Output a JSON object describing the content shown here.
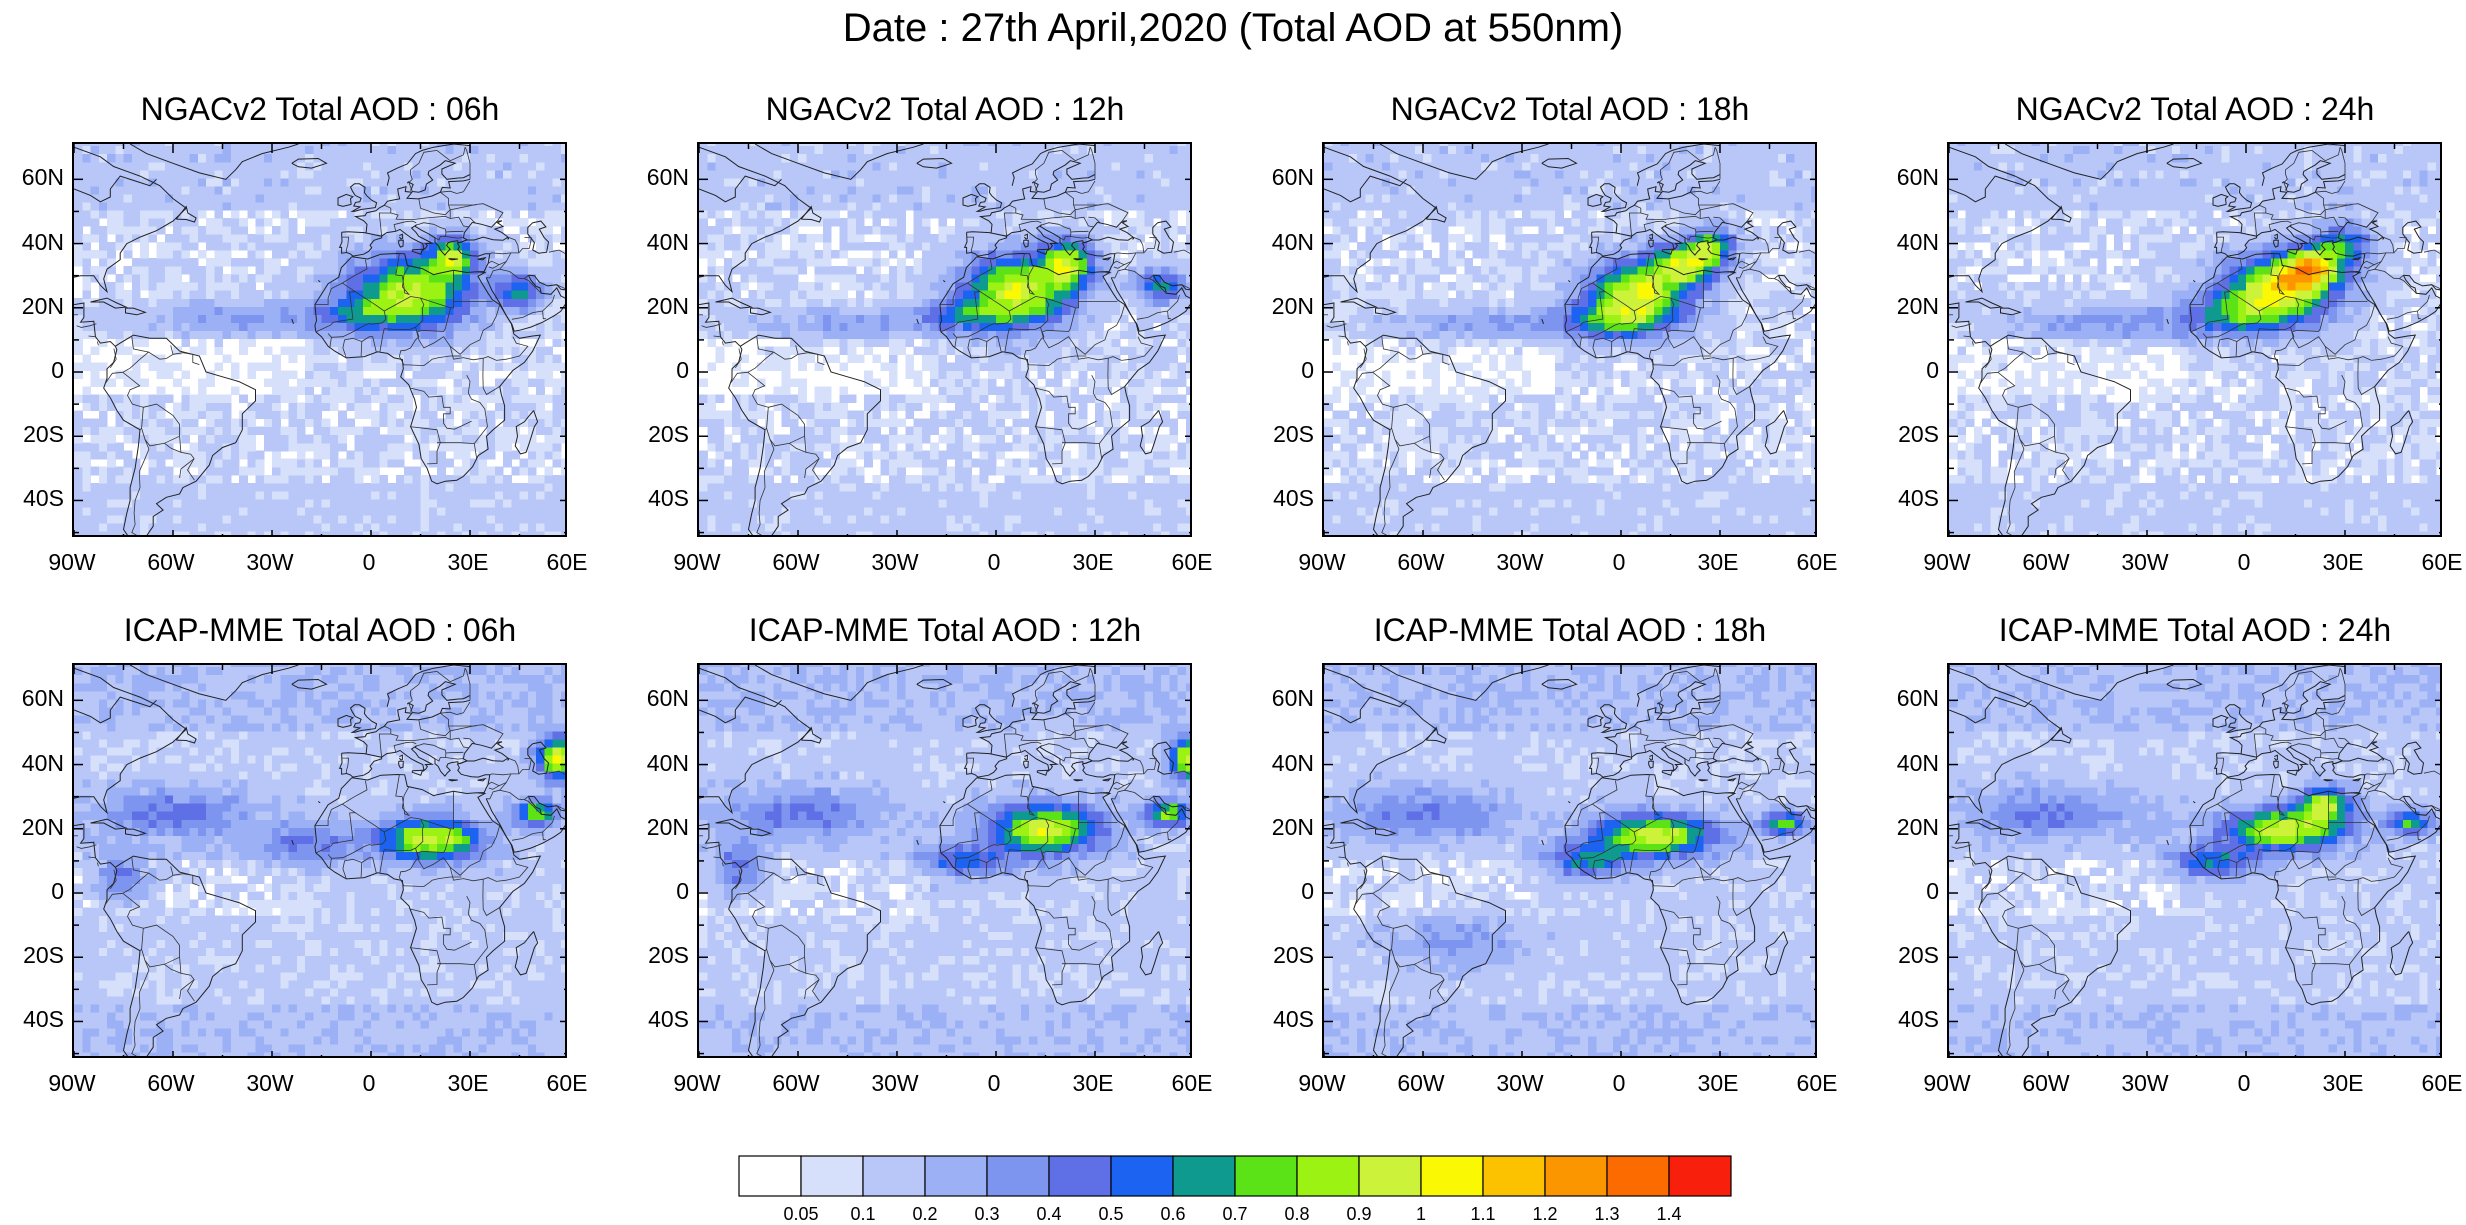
{
  "title": "Date : 27th April,2020 (Total AOD at 550nm)",
  "rows": [
    {
      "panels": [
        {
          "title": "NGACv2 Total AOD : 06h"
        },
        {
          "title": "NGACv2 Total AOD : 12h"
        },
        {
          "title": "NGACv2 Total AOD : 18h"
        },
        {
          "title": "NGACv2 Total AOD : 24h"
        }
      ]
    },
    {
      "panels": [
        {
          "title": "ICAP-MME Total AOD : 06h"
        },
        {
          "title": "ICAP-MME Total AOD : 12h"
        },
        {
          "title": "ICAP-MME Total AOD : 18h"
        },
        {
          "title": "ICAP-MME Total AOD : 24h"
        }
      ]
    }
  ],
  "lat_ticks": [
    "60N",
    "40N",
    "20N",
    "0",
    "20S",
    "40S"
  ],
  "lon_ticks": [
    "90W",
    "60W",
    "30W",
    "0",
    "30E",
    "60E"
  ],
  "colorbar": {
    "labels": [
      "0.05",
      "0.1",
      "0.2",
      "0.3",
      "0.4",
      "0.5",
      "0.6",
      "0.7",
      "0.8",
      "0.9",
      "1",
      "1.1",
      "1.2",
      "1.3",
      "1.4"
    ],
    "colors": [
      "#ffffff",
      "#d6e0fb",
      "#b8c7f8",
      "#9bb0f5",
      "#7e95ef",
      "#5f70e6",
      "#1b63f0",
      "#0e9a8e",
      "#5ce317",
      "#9cf212",
      "#ccf23a",
      "#fbf804",
      "#fcc200",
      "#fc9600",
      "#fc6b00",
      "#f8200c"
    ]
  }
}
